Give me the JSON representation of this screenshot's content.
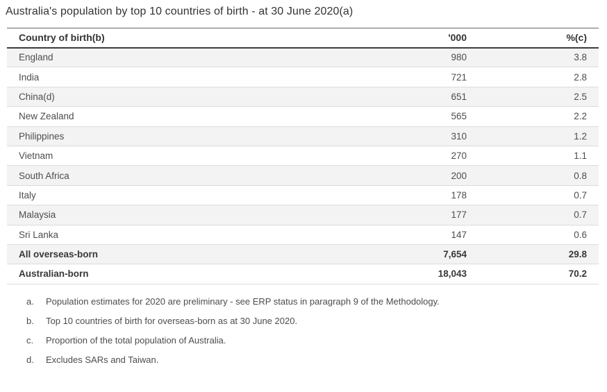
{
  "title": "Australia's population by top 10 countries of birth - at 30 June 2020(a)",
  "table": {
    "columns": [
      "Country of birth(b)",
      "'000",
      "%(c)"
    ],
    "rows": [
      {
        "country": "England",
        "thousands": "980",
        "percent": "3.8",
        "emphasis": false
      },
      {
        "country": "India",
        "thousands": "721",
        "percent": "2.8",
        "emphasis": false
      },
      {
        "country": "China(d)",
        "thousands": "651",
        "percent": "2.5",
        "emphasis": false
      },
      {
        "country": "New Zealand",
        "thousands": "565",
        "percent": "2.2",
        "emphasis": false
      },
      {
        "country": "Philippines",
        "thousands": "310",
        "percent": "1.2",
        "emphasis": false
      },
      {
        "country": "Vietnam",
        "thousands": "270",
        "percent": "1.1",
        "emphasis": false
      },
      {
        "country": "South Africa",
        "thousands": "200",
        "percent": "0.8",
        "emphasis": false
      },
      {
        "country": "Italy",
        "thousands": "178",
        "percent": "0.7",
        "emphasis": false
      },
      {
        "country": "Malaysia",
        "thousands": "177",
        "percent": "0.7",
        "emphasis": false
      },
      {
        "country": "Sri Lanka",
        "thousands": "147",
        "percent": "0.6",
        "emphasis": false
      },
      {
        "country": "All overseas-born",
        "thousands": "7,654",
        "percent": "29.8",
        "emphasis": true
      },
      {
        "country": "Australian-born",
        "thousands": "18,043",
        "percent": "70.2",
        "emphasis": true
      }
    ]
  },
  "footnotes": [
    {
      "marker": "a.",
      "text": "Population estimates for 2020 are preliminary - see ERP status in paragraph 9 of the Methodology."
    },
    {
      "marker": "b.",
      "text": "Top 10 countries of birth for overseas-born as at 30 June 2020."
    },
    {
      "marker": "c.",
      "text": "Proportion of the total population of Australia."
    },
    {
      "marker": "d.",
      "text": "Excludes SARs and Taiwan."
    }
  ],
  "colors": {
    "title_text": "#333333",
    "header_text": "#333333",
    "body_text": "#4d4d4d",
    "emphasis_text": "#383838",
    "zebra_row_bg": "#f3f3f3",
    "row_border": "#dcdcdc",
    "table_top_border": "#646464",
    "header_bottom_border": "#3b3b3b"
  },
  "chart_data": {
    "type": "table",
    "title": "Australia's population by top 10 countries of birth - at 30 June 2020(a)",
    "columns": [
      "Country of birth(b)",
      "'000",
      "%(c)"
    ],
    "rows": [
      [
        "England",
        980,
        3.8
      ],
      [
        "India",
        721,
        2.8
      ],
      [
        "China(d)",
        651,
        2.5
      ],
      [
        "New Zealand",
        565,
        2.2
      ],
      [
        "Philippines",
        310,
        1.2
      ],
      [
        "Vietnam",
        270,
        1.1
      ],
      [
        "South Africa",
        200,
        0.8
      ],
      [
        "Italy",
        178,
        0.7
      ],
      [
        "Malaysia",
        177,
        0.7
      ],
      [
        "Sri Lanka",
        147,
        0.6
      ],
      [
        "All overseas-born",
        7654,
        29.8
      ],
      [
        "Australian-born",
        18043,
        70.2
      ]
    ],
    "notes": [
      "a. Population estimates for 2020 are preliminary - see ERP status in paragraph 9 of the Methodology.",
      "b. Top 10 countries of birth for overseas-born as at 30 June 2020.",
      "c. Proportion of the total population of Australia.",
      "d. Excludes SARs and Taiwan."
    ]
  }
}
